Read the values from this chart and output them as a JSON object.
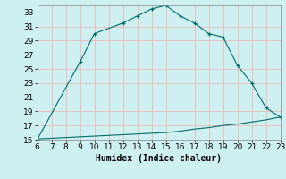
{
  "xlabel": "Humidex (Indice chaleur)",
  "background_color": "#cff0f0",
  "line_color": "#006b6b",
  "grid_color_v": "#f0b0b0",
  "grid_color_h": "#f0b0b0",
  "x_main": [
    6,
    9,
    10,
    12,
    13,
    14,
    15,
    16,
    17,
    18,
    19,
    20,
    21,
    22,
    23
  ],
  "y_main": [
    15,
    26,
    30,
    31.5,
    32.5,
    33.5,
    34,
    32.5,
    31.5,
    30,
    29.5,
    25.5,
    23,
    19.5,
    18.2
  ],
  "x_flat": [
    6,
    7,
    8,
    9,
    10,
    11,
    12,
    13,
    14,
    15,
    16,
    17,
    18,
    19,
    20,
    21,
    22,
    23
  ],
  "y_flat": [
    15.1,
    15.2,
    15.3,
    15.4,
    15.5,
    15.6,
    15.7,
    15.8,
    15.9,
    16.0,
    16.2,
    16.5,
    16.7,
    17.0,
    17.2,
    17.5,
    17.8,
    18.2
  ],
  "xlim": [
    6,
    23
  ],
  "ylim": [
    15,
    34
  ],
  "xticks": [
    6,
    7,
    8,
    9,
    10,
    11,
    12,
    13,
    14,
    15,
    16,
    17,
    18,
    19,
    20,
    21,
    22,
    23
  ],
  "yticks": [
    15,
    17,
    19,
    21,
    23,
    25,
    27,
    29,
    31,
    33
  ],
  "fontsize": 6.5
}
